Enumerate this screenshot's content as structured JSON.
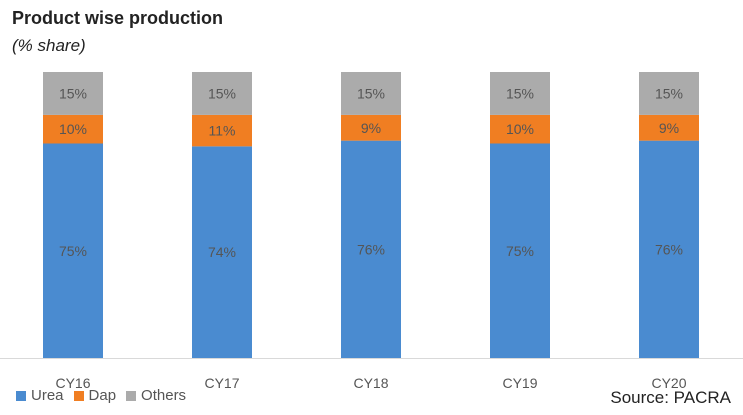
{
  "title": "Product wise production",
  "subtitle": "(% share)",
  "source": "Source: PACRA",
  "colors": {
    "Urea": "#4A8BD0",
    "Dap": "#F07E22",
    "Others": "#ABABAB"
  },
  "chart_data": {
    "type": "bar",
    "stacked": true,
    "categories": [
      "CY16",
      "CY17",
      "CY18",
      "CY19",
      "CY20"
    ],
    "series": [
      {
        "name": "Urea",
        "values": [
          75,
          74,
          76,
          75,
          76
        ]
      },
      {
        "name": "Dap",
        "values": [
          10,
          11,
          9,
          10,
          9
        ]
      },
      {
        "name": "Others",
        "values": [
          15,
          15,
          15,
          15,
          15
        ]
      }
    ],
    "data_labels": [
      [
        "75%",
        "74%",
        "76%",
        "75%",
        "76%"
      ],
      [
        "10%",
        "11%",
        "9%",
        "10%",
        "9%"
      ],
      [
        "15%",
        "15%",
        "15%",
        "15%",
        "15%"
      ]
    ],
    "ylim": [
      0,
      100
    ],
    "grid": false,
    "legend": "bottom-left"
  }
}
